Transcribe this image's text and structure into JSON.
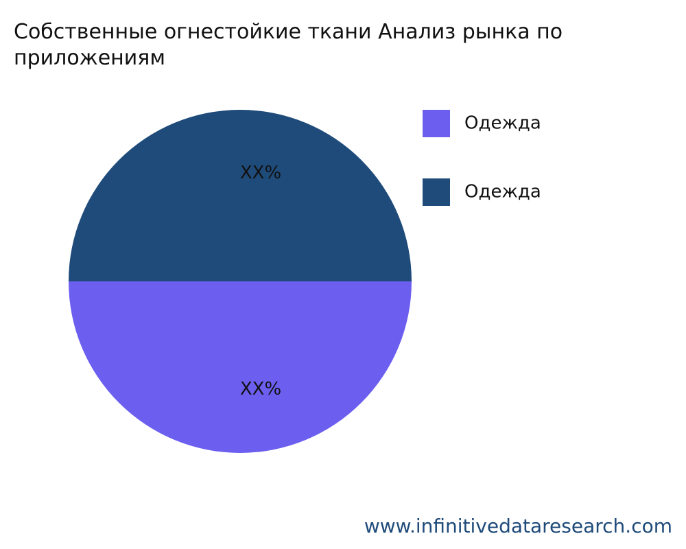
{
  "chart_data": {
    "type": "pie",
    "title": "Собственные огнестойкие ткани Анализ рынка по приложениям",
    "categories": [
      "Одежда",
      "Одежда"
    ],
    "values": [
      50,
      50
    ],
    "value_labels": [
      "XX%",
      "XX%"
    ],
    "colors": [
      "#6c5ff0",
      "#1f4b7a"
    ],
    "legend": "right"
  },
  "footer": "www.infinitivedataresearch.com"
}
